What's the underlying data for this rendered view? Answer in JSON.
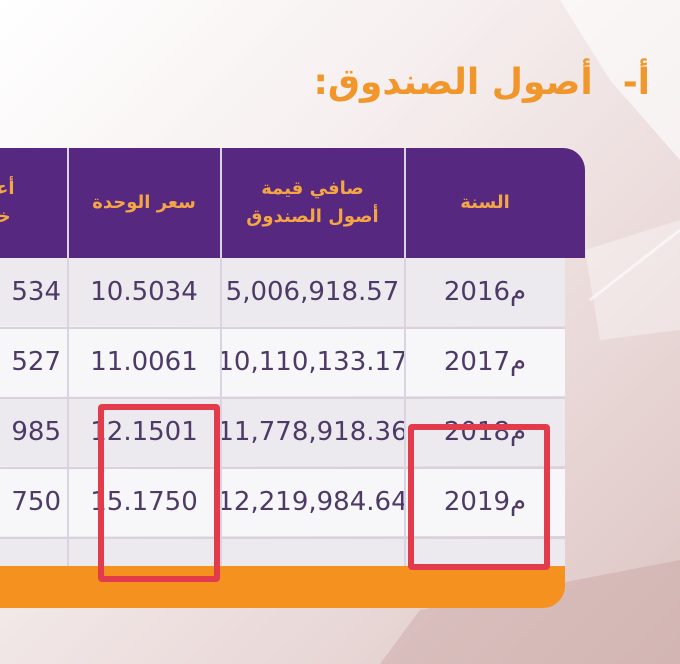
{
  "heading": {
    "label": "أ-",
    "title": "أصول الصندوق:"
  },
  "table": {
    "headers": {
      "year": "السنة",
      "net_assets_line1": "صافي قيمة",
      "net_assets_line2": "أصول الصندوق",
      "unit_price": "سعر الوحدة",
      "highest_line1": "أعل",
      "highest_line2": "خلا"
    },
    "rows": [
      {
        "year": "2016م",
        "net_assets": "5,006,918.57",
        "unit_price": "10.5034",
        "highest": "534"
      },
      {
        "year": "2017م",
        "net_assets": "10,110,133.17",
        "unit_price": "11.0061",
        "highest": "527"
      },
      {
        "year": "2018م",
        "net_assets": "11,778,918.36",
        "unit_price": "12.1501",
        "highest": "985"
      },
      {
        "year": "2019م",
        "net_assets": "12,219,984.64",
        "unit_price": "15.1750",
        "highest": "750"
      }
    ]
  },
  "colors": {
    "header_bg": "#56287f",
    "header_text": "#f4a646",
    "footer_bg": "#f5911f",
    "highlight": "#e23b4c",
    "body_text": "#4e3a66"
  }
}
